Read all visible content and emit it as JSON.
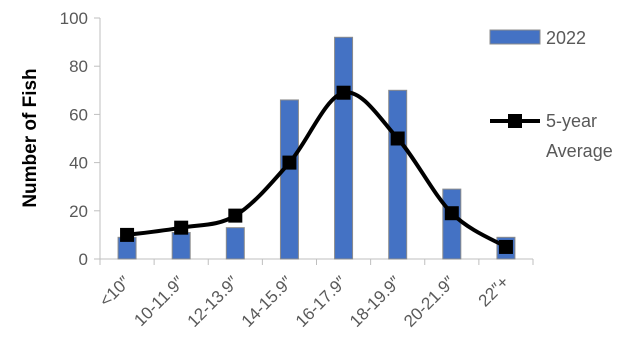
{
  "chart_data": {
    "type": "bar",
    "title": "",
    "xlabel": "",
    "ylabel": "Number of Fish",
    "ylim": [
      0,
      100
    ],
    "yticks": [
      0,
      20,
      40,
      60,
      80,
      100
    ],
    "grid": false,
    "legend_position": "right",
    "categories": [
      "<10″",
      "10-11.9″",
      "12-13.9″",
      "14-15.9″",
      "16-17.9″",
      "18-19.9″",
      "20-21.9″",
      "22″+"
    ],
    "series": [
      {
        "name": "2022",
        "kind": "bar",
        "color": "#4472C4",
        "values": [
          9,
          11,
          13,
          66,
          92,
          70,
          29,
          9
        ]
      },
      {
        "name": "5-year Average",
        "kind": "smooth-line-markers",
        "color": "#000000",
        "values": [
          10,
          13,
          18,
          40,
          69,
          50,
          19,
          5
        ]
      }
    ]
  }
}
